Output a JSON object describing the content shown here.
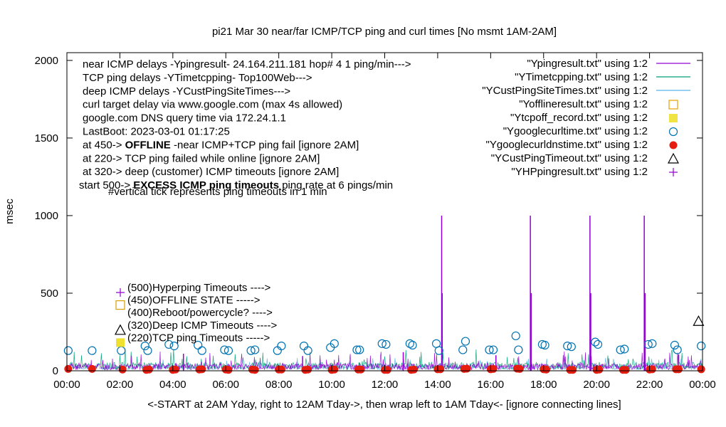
{
  "chart_data": {
    "type": "line",
    "title": "pi21 Mar 30  near/far ICMP/TCP ping and curl times [No msmt 1AM-2AM]",
    "xlabel": "<-START at 2AM Yday, right to 12AM Tday->, then wrap left to 1AM Tday<- [ignore connecting lines]",
    "ylabel": "msec",
    "xlim": [
      0,
      24
    ],
    "ylim": [
      0,
      2050
    ],
    "x_ticks": [
      "00:00",
      "02:00",
      "04:00",
      "06:00",
      "08:00",
      "10:00",
      "12:00",
      "14:00",
      "16:00",
      "18:00",
      "20:00",
      "22:00",
      "00:00"
    ],
    "y_ticks": [
      0,
      500,
      1000,
      1500,
      2000
    ],
    "grid": false,
    "legend_position": "top-right",
    "info_lines": [
      "near ICMP delays -Ypingresult- 24.164.211.181 hop# 4 1 ping/min--->",
      "TCP ping delays -YTimetcpping- Top100Web--->",
      "deep ICMP delays -YCustPingSiteTimes--->",
      "curl target delay via www.google.com (max 4s allowed)",
      "google.com DNS query time via 172.24.1.1",
      "LastBoot: 2023-03-01 01:17:25"
    ],
    "state_lines": [
      {
        "prefix": "at 450-> ",
        "bold": "OFFLINE",
        "suffix": " -near ICMP+TCP ping fail [ignore 2AM]"
      },
      {
        "prefix": "at 220-> TCP ping failed while online [ignore 2AM]",
        "bold": "",
        "suffix": ""
      },
      {
        "prefix": "at 320-> deep (customer) ICMP timeouts [ignore 2AM]",
        "bold": "",
        "suffix": ""
      },
      {
        "prefix": "start 500-> ",
        "bold": "EXCESS ICMP ping timeouts",
        "suffix": " ping rate at 6 pings/min"
      }
    ],
    "note": "#vertical tick represents ping timeouts in 1 min",
    "state_legend": [
      {
        "label": "(500)Hyperping Timeouts ---->",
        "marker": "plus",
        "color": "#9400d3"
      },
      {
        "label": "(450)OFFLINE STATE ----->",
        "marker": "open-square",
        "color": "#d9a000"
      },
      {
        "label": "(400)Reboot/powercycle? ---->",
        "marker": "none",
        "color": "#000000"
      },
      {
        "label": "(320)Deep ICMP Timeouts ---->",
        "marker": "open-triangle",
        "color": "#000000"
      },
      {
        "label": "(220)TCP ping Timeouts ----->",
        "marker": "filled-square",
        "color": "#f0e030"
      }
    ],
    "legend": [
      {
        "name": "\"Ypingresult.txt\" using 1:2",
        "kind": "line",
        "color": "#9400d3"
      },
      {
        "name": "\"YTimetcpping.txt\" using 1:2",
        "kind": "line",
        "color": "#009e73"
      },
      {
        "name": "\"YCustPingSiteTimes.txt\" using 1:2",
        "kind": "line",
        "color": "#56b4e9"
      },
      {
        "name": "\"Yofflineresult.txt\" using 1:2",
        "kind": "open-square",
        "color": "#e69f00"
      },
      {
        "name": "\"Ytcpoff_record.txt\" using 1:2",
        "kind": "filled-square",
        "color": "#f0e442"
      },
      {
        "name": "\"Ygooglecurltime.txt\" using 1:2",
        "kind": "open-circle",
        "color": "#0072b2"
      },
      {
        "name": "\"Ygooglecurldnstime.txt\" using 1:2",
        "kind": "filled-circle",
        "color": "#e51e10"
      },
      {
        "name": "\"YCustPingTimeout.txt\" using 1:2",
        "kind": "open-triangle",
        "color": "#000000"
      },
      {
        "name": "\"YHPpingresult.txt\" using 1:2",
        "kind": "plus",
        "color": "#9400d3"
      }
    ],
    "series": [
      {
        "name": "\"Ypingresult.txt\" using 1:2",
        "spikes": [
          {
            "x": 14.15,
            "y": 1000
          },
          {
            "x": 14.17,
            "y": 500
          },
          {
            "x": 17.5,
            "y": 1000
          },
          {
            "x": 17.53,
            "y": 500
          },
          {
            "x": 19.75,
            "y": 1000
          },
          {
            "x": 19.78,
            "y": 500
          },
          {
            "x": 21.8,
            "y": 1000
          },
          {
            "x": 21.83,
            "y": 500
          },
          {
            "x": 4.4,
            "y": 110
          },
          {
            "x": 8.9,
            "y": 95
          },
          {
            "x": 12.7,
            "y": 120
          },
          {
            "x": 16.2,
            "y": 100
          },
          {
            "x": 23.1,
            "y": 105
          }
        ]
      },
      {
        "name": "\"Ygooglecurltime.txt\" using 1:2",
        "points": [
          [
            0.05,
            130
          ],
          [
            0.95,
            130
          ],
          [
            2.05,
            130
          ],
          [
            2.95,
            160
          ],
          [
            3.05,
            130
          ],
          [
            3.85,
            170
          ],
          [
            4.05,
            160
          ],
          [
            4.95,
            165
          ],
          [
            5.1,
            130
          ],
          [
            5.95,
            135
          ],
          [
            6.1,
            130
          ],
          [
            6.95,
            130
          ],
          [
            7.1,
            135
          ],
          [
            7.95,
            130
          ],
          [
            8.1,
            160
          ],
          [
            8.95,
            160
          ],
          [
            9.1,
            130
          ],
          [
            9.95,
            150
          ],
          [
            10.1,
            175
          ],
          [
            10.95,
            135
          ],
          [
            11.05,
            135
          ],
          [
            11.9,
            175
          ],
          [
            12.05,
            170
          ],
          [
            12.95,
            175
          ],
          [
            13.05,
            165
          ],
          [
            13.95,
            175
          ],
          [
            14.05,
            130
          ],
          [
            14.95,
            135
          ],
          [
            15.05,
            190
          ],
          [
            15.95,
            135
          ],
          [
            16.1,
            135
          ],
          [
            16.95,
            225
          ],
          [
            17.05,
            135
          ],
          [
            17.95,
            170
          ],
          [
            18.05,
            165
          ],
          [
            18.9,
            160
          ],
          [
            19.05,
            155
          ],
          [
            19.95,
            185
          ],
          [
            20.05,
            170
          ],
          [
            20.9,
            135
          ],
          [
            21.05,
            140
          ],
          [
            21.95,
            170
          ],
          [
            22.1,
            175
          ],
          [
            22.95,
            165
          ],
          [
            23.05,
            135
          ],
          [
            23.95,
            160
          ]
        ]
      },
      {
        "name": "\"Ygooglecurldnstime.txt\" using 1:2",
        "points": [
          [
            0.05,
            12
          ],
          [
            0.95,
            12
          ],
          [
            2.1,
            8
          ],
          [
            3.0,
            6
          ],
          [
            3.1,
            8
          ],
          [
            4.0,
            6
          ],
          [
            4.1,
            8
          ],
          [
            5.0,
            8
          ],
          [
            5.1,
            10
          ],
          [
            6.0,
            8
          ],
          [
            6.1,
            6
          ],
          [
            7.0,
            8
          ],
          [
            7.1,
            6
          ],
          [
            8.0,
            8
          ],
          [
            8.1,
            8
          ],
          [
            9.0,
            6
          ],
          [
            9.1,
            8
          ],
          [
            10.0,
            6
          ],
          [
            10.1,
            8
          ],
          [
            11.0,
            8
          ],
          [
            11.1,
            8
          ],
          [
            12.0,
            6
          ],
          [
            12.1,
            6
          ],
          [
            13.0,
            6
          ],
          [
            13.1,
            8
          ],
          [
            14.0,
            10
          ],
          [
            14.1,
            10
          ],
          [
            15.0,
            12
          ],
          [
            15.1,
            14
          ],
          [
            16.0,
            10
          ],
          [
            16.1,
            12
          ],
          [
            17.0,
            14
          ],
          [
            17.1,
            12
          ],
          [
            18.0,
            10
          ],
          [
            18.1,
            8
          ],
          [
            19.0,
            6
          ],
          [
            19.1,
            6
          ],
          [
            20.0,
            6
          ],
          [
            20.1,
            8
          ],
          [
            21.0,
            6
          ],
          [
            21.1,
            6
          ],
          [
            22.0,
            8
          ],
          [
            22.1,
            10
          ],
          [
            23.0,
            10
          ],
          [
            23.1,
            10
          ],
          [
            23.95,
            10
          ]
        ]
      },
      {
        "name": "\"YCustPingTimeout.txt\" using 1:2",
        "points": [
          [
            23.85,
            320
          ]
        ]
      }
    ]
  }
}
